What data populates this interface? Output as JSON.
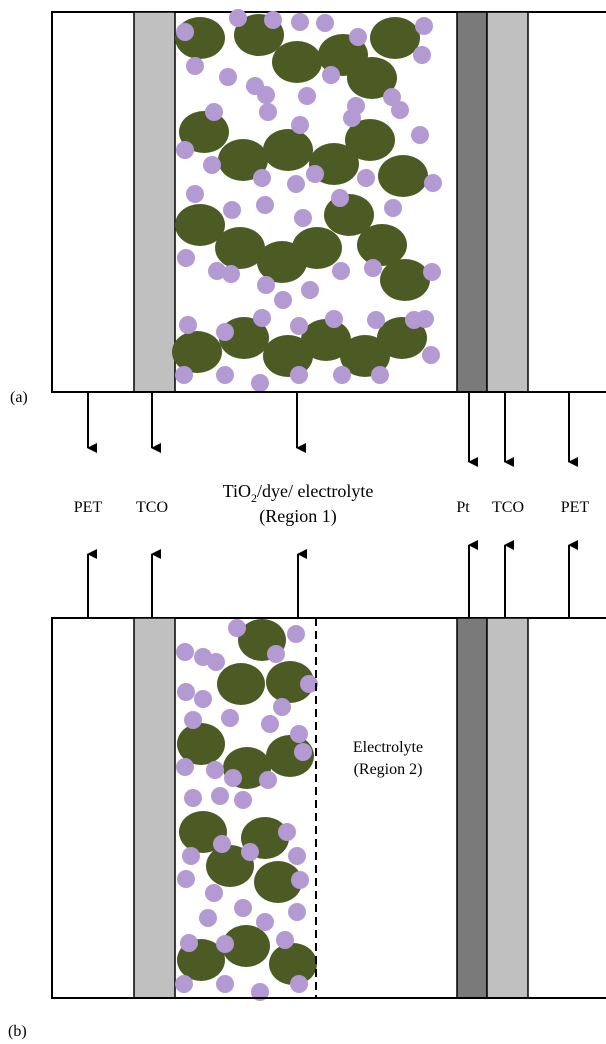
{
  "panels": {
    "a": {
      "label": "(a)"
    },
    "b": {
      "label": "(b)"
    }
  },
  "layers": {
    "pet_left": "PET",
    "tco_left": "TCO",
    "region1": {
      "line1_prefix": "TiO",
      "line1_sub": "2",
      "line1_suffix": "/dye/ electrolyte",
      "line2": "(Region 1)"
    },
    "pt": "Pt",
    "tco_right": "TCO",
    "pet_right": "PET"
  },
  "region2": {
    "line1": "Electrolyte",
    "line2": "(Region 2)"
  },
  "colors": {
    "pet": "#ffffff",
    "tco": "#c0c0c0",
    "pt": "#7a7a7a",
    "tio2_particle": "#4b5b23",
    "dye_molecule": "#b39ad3",
    "outline": "#000000"
  }
}
